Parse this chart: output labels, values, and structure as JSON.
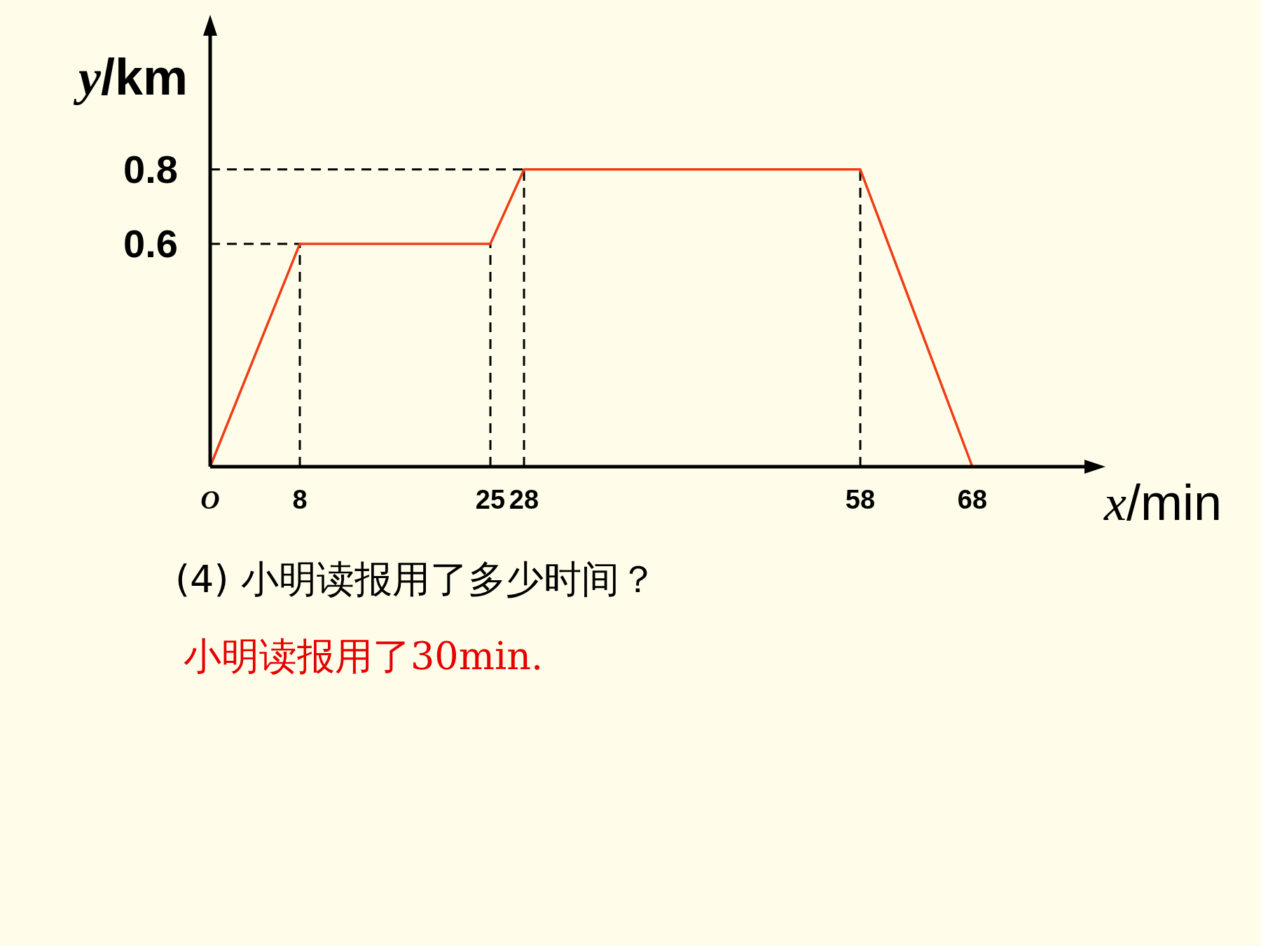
{
  "chart_data": {
    "type": "line",
    "xlabel": "x/min",
    "ylabel": "y/km",
    "x": [
      0,
      8,
      25,
      28,
      58,
      68
    ],
    "series": [
      {
        "color": "#f03c14",
        "values": [
          0,
          0.6,
          0.6,
          0.8,
          0.8,
          0
        ],
        "line_style": "solid"
      }
    ],
    "xlim": [
      0,
      78
    ],
    "ylim": [
      0,
      1.16
    ],
    "xticks": [
      {
        "value": 0,
        "label": "O"
      },
      8,
      25,
      28,
      58,
      68
    ],
    "yticks": [
      0.6,
      0.8
    ],
    "grid": false,
    "marker": "none",
    "ref_lines": [
      {
        "axis": "x",
        "value": 8,
        "line_style": "dashed",
        "color": "#000000"
      },
      {
        "axis": "x",
        "value": 25,
        "line_style": "dashed",
        "color": "#000000"
      },
      {
        "axis": "x",
        "value": 28,
        "line_style": "dashed",
        "color": "#000000"
      },
      {
        "axis": "x",
        "value": 58,
        "line_style": "dashed",
        "color": "#000000"
      },
      {
        "axis": "y",
        "value": 0.6,
        "line_style": "dashed",
        "color": "#000000"
      },
      {
        "axis": "y",
        "value": 0.8,
        "line_style": "dashed",
        "color": "#000000"
      }
    ],
    "annotations": [
      "(4) 小明读报用了多少时间？",
      "小明读报用了30min."
    ]
  }
}
